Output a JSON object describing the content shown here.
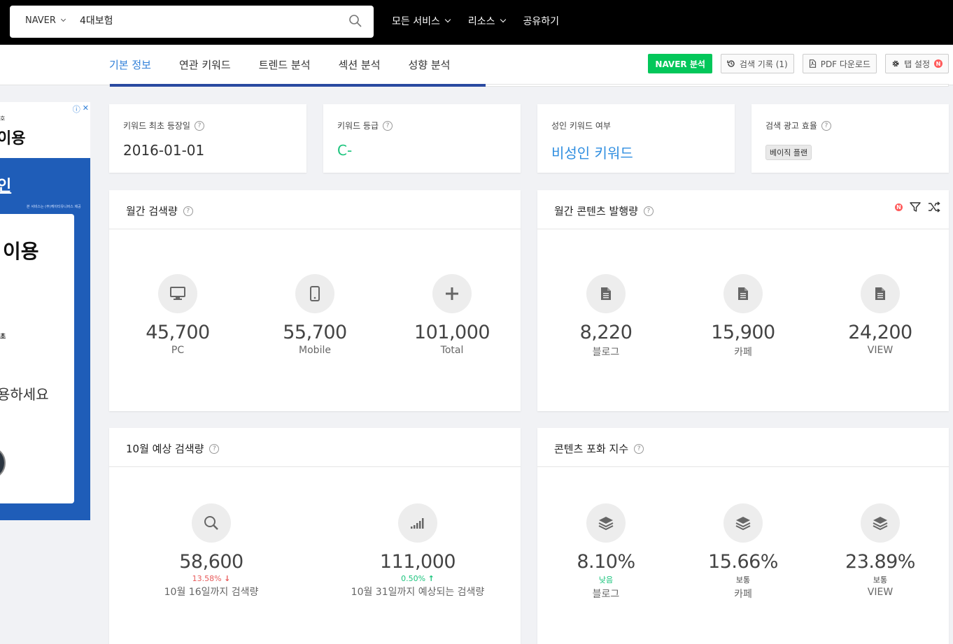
{
  "topbar": {
    "engine": "NAVER",
    "query": "4대보험",
    "nav": [
      "모든 서비스",
      "리소스",
      "공유하기"
    ]
  },
  "tabs": {
    "items": [
      "기본 정보",
      "연관 키워드",
      "트렌드 분석",
      "섹션 분석",
      "성향 분석"
    ],
    "active": 0,
    "progress": 0.448
  },
  "actions": {
    "naver": "NAVER 분석",
    "history": "검색 기록 (1)",
    "pdf": "PDF 다운로드",
    "settings": "탭 설정",
    "badge": "N"
  },
  "ad": {
    "small": "호",
    "title": "이용",
    "link": "인",
    "note": "본 서비스는 (주)케이티유니버스 제공",
    "card_title": "이용",
    "card_small": "초",
    "card_text": "용하세요"
  },
  "info": {
    "first_seen": {
      "label": "키워드 최초 등장일",
      "value": "2016-01-01"
    },
    "grade": {
      "label": "키워드 등급",
      "value": "C-"
    },
    "adult": {
      "label": "성인 키워드 여부",
      "value": "비성인 키워드"
    },
    "ad_eff": {
      "label": "검색 광고 효율",
      "value": "베이직 플랜"
    }
  },
  "monthly_search": {
    "title": "월간 검색량",
    "stats": [
      {
        "icon": "desktop-icon",
        "value": "45,700",
        "label": "PC"
      },
      {
        "icon": "mobile-icon",
        "value": "55,700",
        "label": "Mobile"
      },
      {
        "icon": "plus-icon",
        "value": "101,000",
        "label": "Total"
      }
    ]
  },
  "monthly_content": {
    "title": "월간 콘텐츠 발행량",
    "badge": "N",
    "stats": [
      {
        "icon": "document-icon",
        "value": "8,220",
        "label": "블로그"
      },
      {
        "icon": "document-icon",
        "value": "15,900",
        "label": "카페"
      },
      {
        "icon": "document-icon",
        "value": "24,200",
        "label": "VIEW"
      }
    ]
  },
  "forecast": {
    "title": "10월 예상 검색량",
    "stats": [
      {
        "icon": "search-icon",
        "value": "58,600",
        "change": "13.58%",
        "direction": "down",
        "label": "10월 16일까지 검색량"
      },
      {
        "icon": "signal-icon",
        "value": "111,000",
        "change": "0.50%",
        "direction": "up",
        "label": "10월 31일까지 예상되는 검색량"
      }
    ]
  },
  "saturation": {
    "title": "콘텐츠 포화 지수",
    "stats": [
      {
        "icon": "layers-icon",
        "value": "8.10%",
        "level": "낮음",
        "label": "블로그"
      },
      {
        "icon": "layers-icon",
        "value": "15.66%",
        "level": "보통",
        "label": "카페"
      },
      {
        "icon": "layers-icon",
        "value": "23.89%",
        "level": "보통",
        "label": "VIEW"
      }
    ]
  },
  "colors": {
    "accent": "#2f7fd8",
    "green": "#03c75a",
    "red": "#e85a5a",
    "adBlue": "#1f5db8"
  }
}
